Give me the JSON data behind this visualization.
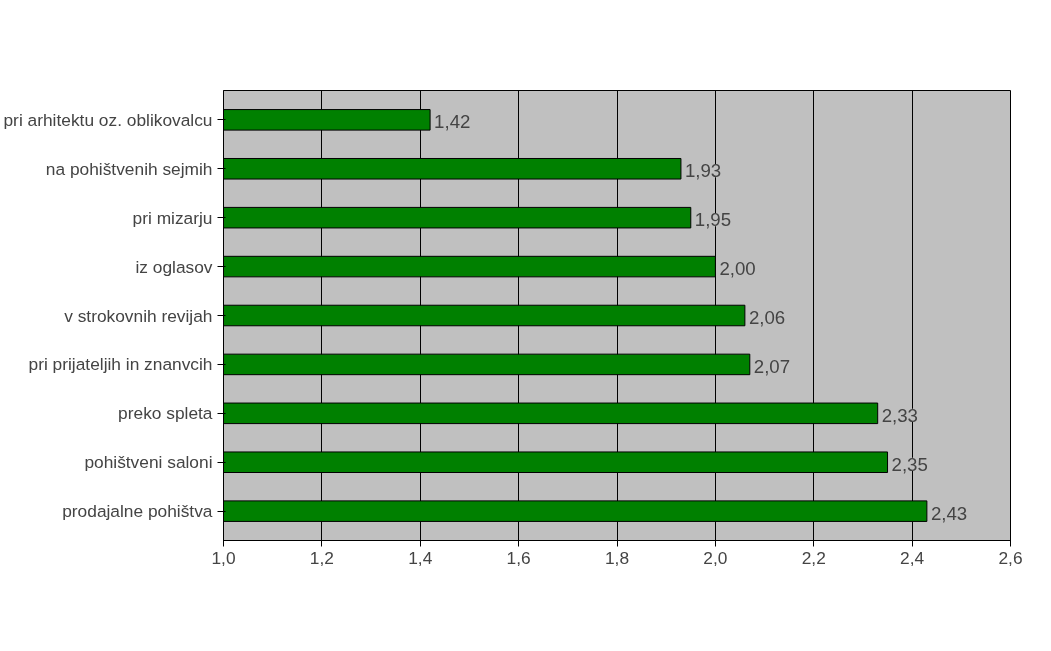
{
  "chart_data": {
    "type": "bar",
    "orientation": "horizontal",
    "categories": [
      "pri arhitektu oz. oblikovalcu",
      "na pohištvenih sejmih",
      "pri mizarju",
      "iz oglasov",
      "v strokovnih revijah",
      "pri prijateljih in znanvcih",
      "preko spleta",
      "pohištveni saloni",
      "prodajalne pohištva"
    ],
    "values": [
      1.42,
      1.93,
      1.95,
      2.0,
      2.06,
      2.07,
      2.33,
      2.35,
      2.43
    ],
    "value_labels": [
      "1,42",
      "1,93",
      "1,95",
      "2,00",
      "2,06",
      "2,07",
      "2,33",
      "2,35",
      "2,43"
    ],
    "color": "#008000",
    "xlim": [
      1.0,
      2.6
    ],
    "xticks": [
      {
        "value": 1.0,
        "label": "1,0"
      },
      {
        "value": 1.2,
        "label": "1,2"
      },
      {
        "value": 1.4,
        "label": "1,4"
      },
      {
        "value": 1.6,
        "label": "1,6"
      },
      {
        "value": 1.8,
        "label": "1,8"
      },
      {
        "value": 2.0,
        "label": "2,0"
      },
      {
        "value": 2.2,
        "label": "2,2"
      },
      {
        "value": 2.4,
        "label": "2,4"
      },
      {
        "value": 2.6,
        "label": "2,6"
      }
    ],
    "grid": "x"
  }
}
